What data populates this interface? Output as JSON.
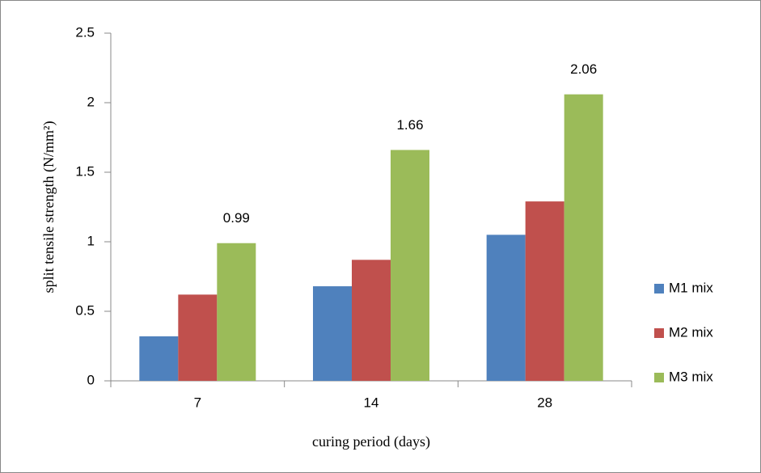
{
  "chart_data": {
    "type": "bar",
    "y_label": "split tensile strength (N/mm²)",
    "x_label": "curing period (days)",
    "categories": [
      "7",
      "14",
      "28"
    ],
    "series": [
      {
        "name": "M1 mix",
        "color": "#4f81bd",
        "values": [
          0.32,
          0.68,
          1.05
        ],
        "data_labels": false
      },
      {
        "name": "M2 mix",
        "color": "#c0504d",
        "values": [
          0.62,
          0.87,
          1.29
        ],
        "data_labels": false
      },
      {
        "name": "M3 mix",
        "color": "#9bbb59",
        "values": [
          0.99,
          1.66,
          2.06
        ],
        "data_labels": true
      }
    ],
    "ylim": [
      0,
      2.5
    ],
    "yticks": [
      0,
      0.5,
      1,
      1.5,
      2,
      2.5
    ],
    "grid": false,
    "legend": "right"
  }
}
